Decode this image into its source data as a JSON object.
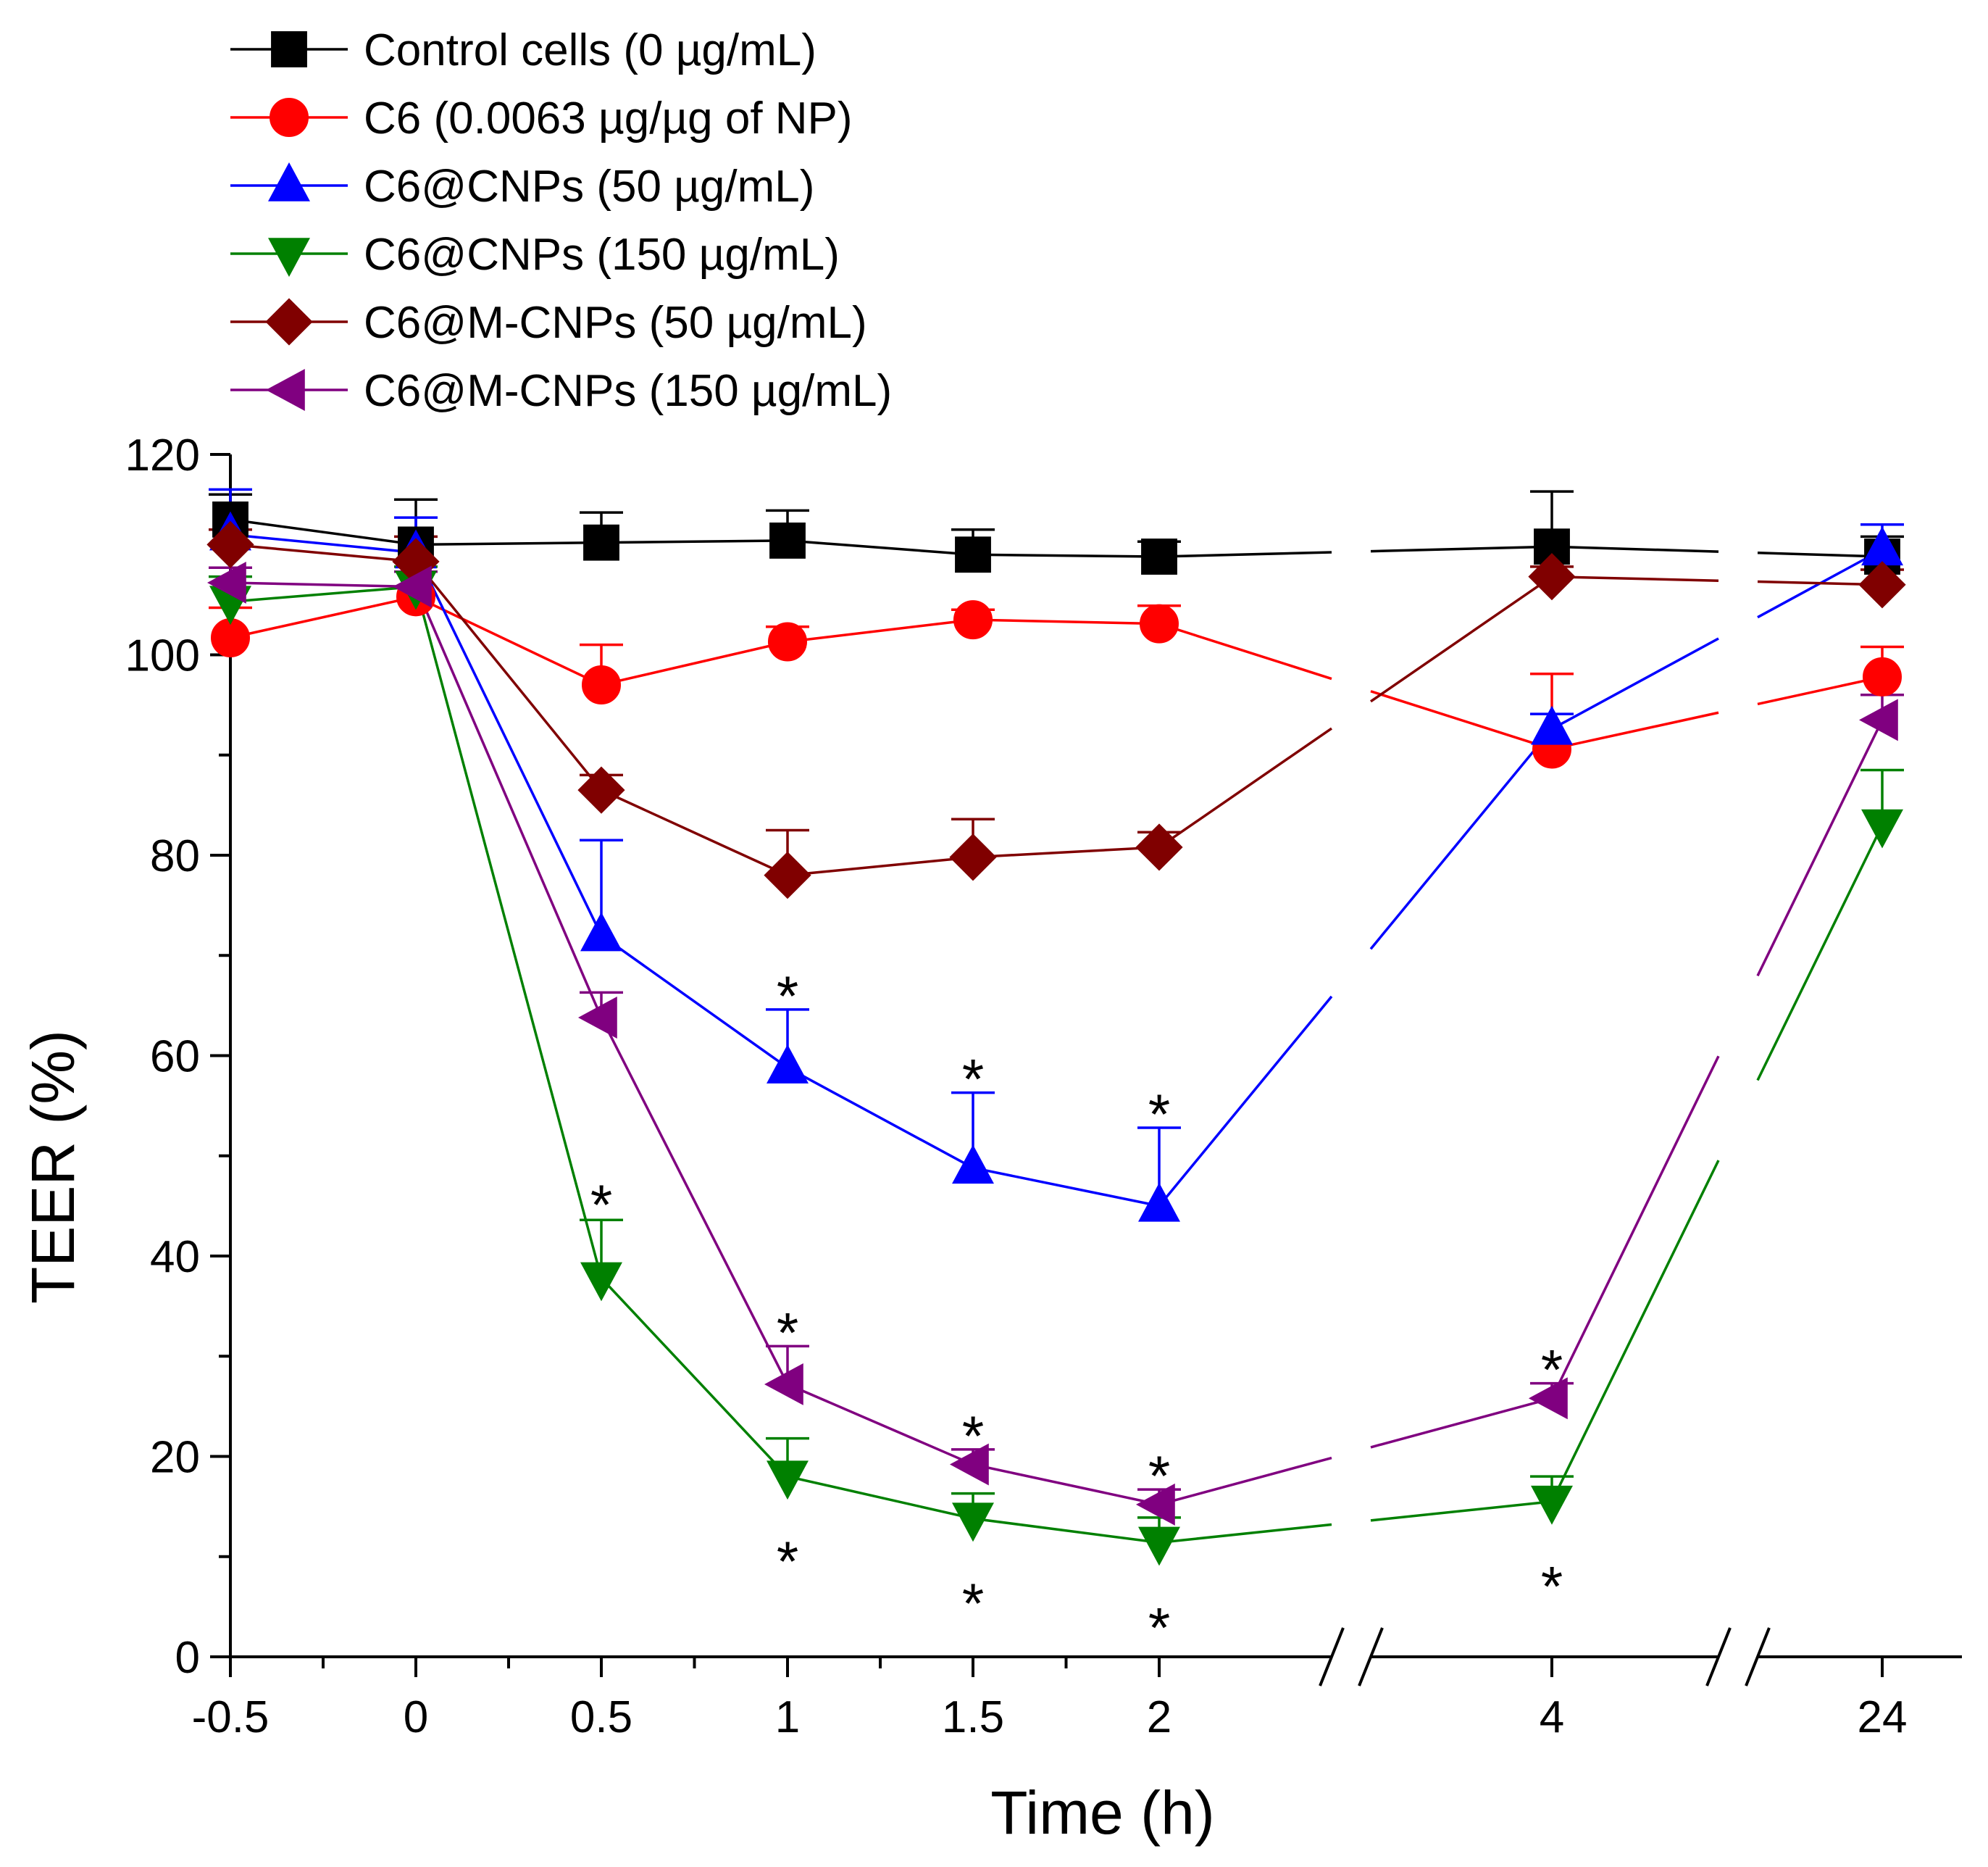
{
  "chart_data": {
    "type": "line",
    "xlabel": "Time (h)",
    "ylabel": "TEER (%)",
    "ylim": [
      0,
      120
    ],
    "yticks": [
      0,
      20,
      40,
      60,
      80,
      100,
      120
    ],
    "x_tick_labels": [
      "-0.5",
      "0",
      "0.5",
      "1",
      "1.5",
      "2",
      "4",
      "24"
    ],
    "x_axis_breaks": [
      "between 2 and 4",
      "between 4 and 24"
    ],
    "grid": false,
    "legend_position": "top-left",
    "significance_marker": "*",
    "series": [
      {
        "name": "Control cells (0 µg/mL)",
        "color": "#000000",
        "marker": "square",
        "values": [
          113.5,
          111,
          111.2,
          111.4,
          110,
          109.8,
          110.8,
          109.8
        ],
        "errors": [
          2.5,
          4.5,
          3,
          3,
          2.5,
          1.5,
          5.5,
          2
        ],
        "significant": []
      },
      {
        "name": "C6 (0.0063 µg/µg of NP)",
        "color": "#ff0000",
        "marker": "circle",
        "values": [
          101.7,
          105.8,
          97,
          101.3,
          103.5,
          103.1,
          90.6,
          97.8
        ],
        "errors": [
          3,
          2.5,
          4,
          1.5,
          1,
          1.8,
          7.5,
          3
        ],
        "significant": []
      },
      {
        "name": "C6@CNPs (50 µg/mL)",
        "color": "#0000ff",
        "marker": "triangle-up",
        "values": [
          112,
          110.2,
          72,
          58.8,
          48.8,
          45,
          92.6,
          110.5
        ],
        "errors": [
          4.5,
          3.5,
          9.5,
          5.8,
          7.5,
          7.8,
          1.5,
          2.5
        ],
        "significant": [
          3,
          4,
          5
        ]
      },
      {
        "name": "C6@CNPs (150 µg/mL)",
        "color": "#008000",
        "marker": "triangle-down",
        "values": [
          105.3,
          106.8,
          37.8,
          18,
          13.8,
          11.4,
          15.5,
          83
        ],
        "errors": [
          2.5,
          2,
          5.8,
          3.8,
          2.5,
          2.5,
          2.5,
          5.5
        ],
        "significant": [
          2,
          3,
          4,
          5,
          6
        ]
      },
      {
        "name": "C6@M-CNPs (50 µg/mL)",
        "color": "#800000",
        "marker": "diamond",
        "values": [
          111,
          109.3,
          86.5,
          78,
          79.8,
          80.8,
          107.8,
          107
        ],
        "errors": [
          1.5,
          2.5,
          1.5,
          4.5,
          3.8,
          1.5,
          1,
          1.5
        ],
        "significant": []
      },
      {
        "name": "C6@M-CNPs (150 µg/mL)",
        "color": "#800080",
        "marker": "triangle-left",
        "values": [
          107.2,
          106.8,
          63.8,
          27.2,
          19.2,
          15.2,
          25.8,
          93.5
        ],
        "errors": [
          1.5,
          1.5,
          2.5,
          3.8,
          1.5,
          1.5,
          1.5,
          2.5
        ],
        "significant": [
          3,
          4,
          5,
          6
        ]
      }
    ]
  }
}
